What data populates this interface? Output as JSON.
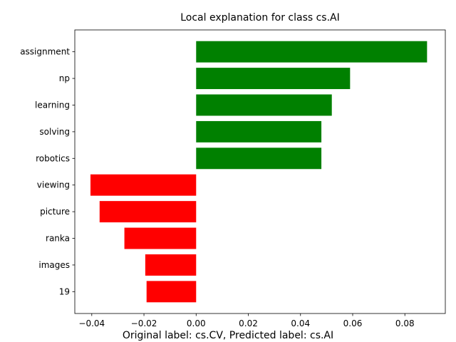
{
  "chart_data": {
    "type": "bar",
    "orientation": "horizontal",
    "title": "Local explanation for class cs.AI",
    "xlabel": "",
    "ylabel": "",
    "categories": [
      "assignment",
      "np",
      "learning",
      "solving",
      "robotics",
      "viewing",
      "picture",
      "ranka",
      "images",
      "19"
    ],
    "values": [
      0.0885,
      0.059,
      0.052,
      0.048,
      0.048,
      -0.0405,
      -0.037,
      -0.0275,
      -0.0195,
      -0.019
    ],
    "xlim": [
      -0.0465,
      0.0955
    ],
    "xticks": [
      -0.04,
      -0.02,
      0.0,
      0.02,
      0.04,
      0.06,
      0.08
    ],
    "xtick_labels": [
      "−0.04",
      "−0.02",
      "0.00",
      "0.02",
      "0.04",
      "0.06",
      "0.08"
    ],
    "positive_color": "#008000",
    "negative_color": "#ff0000",
    "grid": false,
    "caption": "Original label: cs.CV, Predicted label: cs.AI"
  }
}
